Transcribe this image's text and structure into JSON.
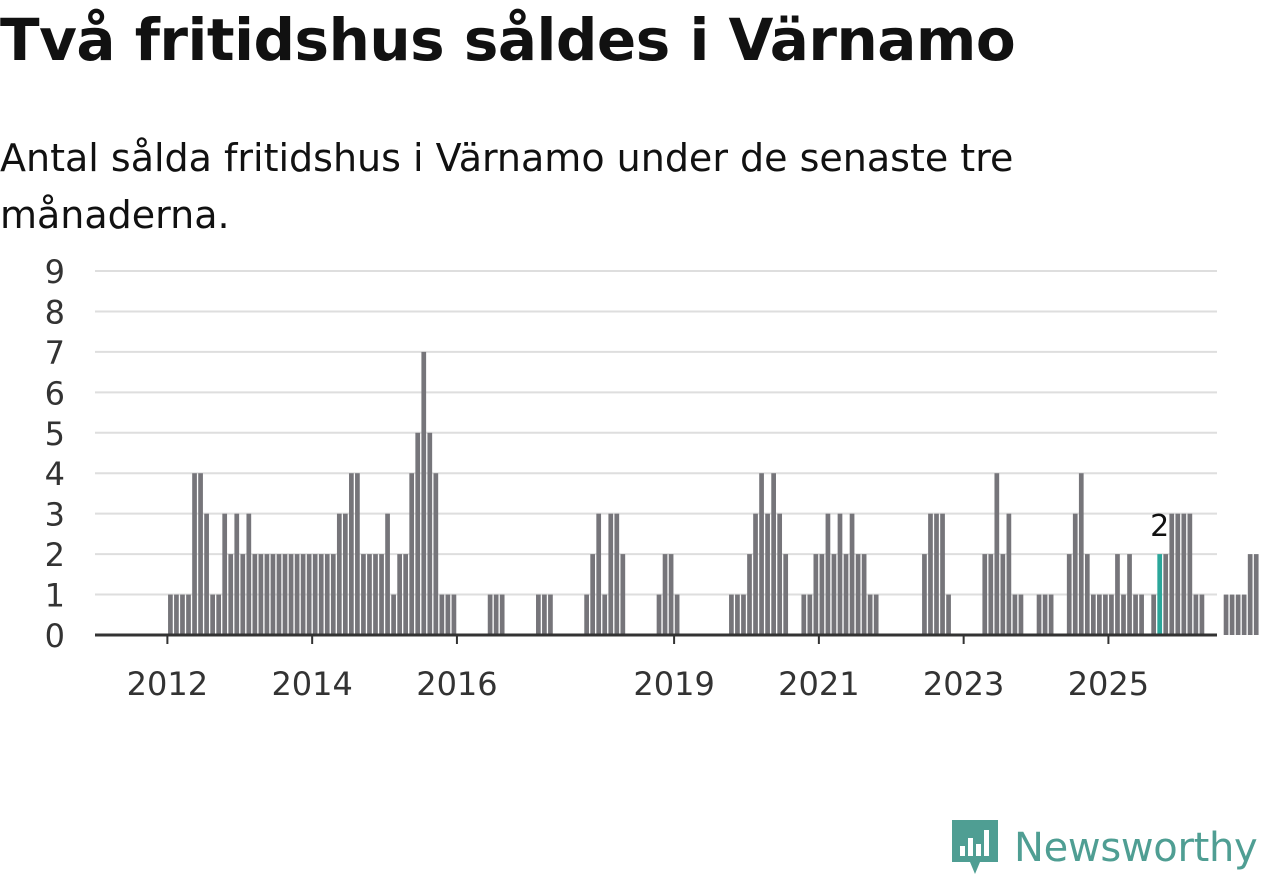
{
  "chart_data": {
    "type": "bar",
    "title": "Två fritidshus såldes i Värnamo",
    "subtitle": "Antal sålda fritidshus i Värnamo under de senaste tre månaderna.",
    "xlabel": "",
    "ylabel": "",
    "ylim": [
      0,
      9
    ],
    "yticks": [
      "0",
      "1",
      "2",
      "3",
      "4",
      "5",
      "6",
      "7",
      "8",
      "9"
    ],
    "grid": true,
    "x_start": "2011-01",
    "x_end": "2026-07",
    "first_bar": "2012-01",
    "xticks": [
      {
        "label": "2012",
        "year": 2012
      },
      {
        "label": "2014",
        "year": 2014
      },
      {
        "label": "2016",
        "year": 2016
      },
      {
        "label": "2019",
        "year": 2019
      },
      {
        "label": "2021",
        "year": 2021
      },
      {
        "label": "2023",
        "year": 2023
      },
      {
        "label": "2025",
        "year": 2025
      }
    ],
    "values": [
      1,
      1,
      1,
      1,
      4,
      4,
      3,
      1,
      1,
      3,
      2,
      3,
      2,
      3,
      2,
      2,
      2,
      2,
      2,
      2,
      2,
      2,
      2,
      2,
      2,
      2,
      2,
      2,
      3,
      3,
      4,
      4,
      2,
      2,
      2,
      2,
      3,
      1,
      2,
      2,
      4,
      5,
      7,
      5,
      4,
      1,
      1,
      1,
      0,
      0,
      0,
      0,
      0,
      1,
      1,
      1,
      0,
      0,
      0,
      0,
      0,
      1,
      1,
      1,
      0,
      0,
      0,
      0,
      0,
      1,
      2,
      3,
      1,
      3,
      3,
      2,
      0,
      0,
      0,
      0,
      0,
      1,
      2,
      2,
      1,
      0,
      0,
      0,
      0,
      0,
      0,
      0,
      0,
      1,
      1,
      1,
      2,
      3,
      4,
      3,
      4,
      3,
      2,
      0,
      0,
      1,
      1,
      2,
      2,
      3,
      2,
      3,
      2,
      3,
      2,
      2,
      1,
      1,
      0,
      0,
      0,
      0,
      0,
      0,
      0,
      2,
      3,
      3,
      3,
      1,
      0,
      0,
      0,
      0,
      0,
      2,
      2,
      4,
      2,
      3,
      1,
      1,
      0,
      0,
      1,
      1,
      1,
      0,
      0,
      2,
      3,
      4,
      2,
      1,
      1,
      1,
      1,
      2,
      1,
      2,
      1,
      1,
      0,
      1,
      2,
      2,
      3,
      3,
      3,
      3,
      1,
      1,
      0,
      0,
      0,
      1,
      1,
      1,
      1,
      2,
      2
    ],
    "highlight": {
      "index": 164,
      "value": 2,
      "label": "2"
    },
    "colors": {
      "bar": "#76757a",
      "highlight": "#2ba69a",
      "grid": "#dedede",
      "axis": "#333333",
      "tick_text": "#333333"
    }
  },
  "brand": {
    "name": "Newsworthy",
    "icon": "bar-chart-badge-icon",
    "color": "#4f9e93"
  }
}
